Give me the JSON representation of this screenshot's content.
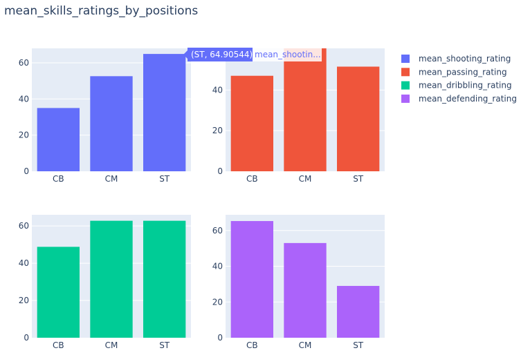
{
  "title": "mean_skills_ratings_by_positions",
  "colors": {
    "plot_bg": "#e5ecf6",
    "grid": "#ffffff",
    "text": "#2a3f5f"
  },
  "legend": {
    "placement": "top-right",
    "items": [
      {
        "name": "mean_shooting_rating",
        "color": "#636efa"
      },
      {
        "name": "mean_passing_rating",
        "color": "#ef553b"
      },
      {
        "name": "mean_dribbling_rating",
        "color": "#00cc96"
      },
      {
        "name": "mean_defending_rating",
        "color": "#ab63fa"
      }
    ]
  },
  "hover": {
    "point_text": "(ST, 64.90544)",
    "series_text": "mean_shootin...",
    "color": "#636efa"
  },
  "chart_data": [
    {
      "type": "bar",
      "title": "",
      "categories": [
        "CB",
        "CM",
        "ST"
      ],
      "series": [
        {
          "name": "mean_shooting_rating",
          "values": [
            35.0,
            52.6,
            64.90544
          ]
        }
      ],
      "ylim": [
        0,
        68
      ],
      "yticks": [
        0,
        20,
        40,
        60
      ],
      "grid": true
    },
    {
      "type": "bar",
      "title": "",
      "categories": [
        "CB",
        "CM",
        "ST"
      ],
      "series": [
        {
          "name": "mean_passing_rating",
          "values": [
            47.0,
            60.5,
            51.5
          ]
        }
      ],
      "ylim": [
        0,
        60.5
      ],
      "yticks": [
        0,
        20,
        40
      ],
      "grid": true
    },
    {
      "type": "bar",
      "title": "",
      "categories": [
        "CB",
        "CM",
        "ST"
      ],
      "series": [
        {
          "name": "mean_dribbling_rating",
          "values": [
            48.8,
            62.8,
            62.8
          ]
        }
      ],
      "ylim": [
        0,
        66
      ],
      "yticks": [
        0,
        20,
        40,
        60
      ],
      "grid": true
    },
    {
      "type": "bar",
      "title": "",
      "categories": [
        "CB",
        "CM",
        "ST"
      ],
      "series": [
        {
          "name": "mean_defending_rating",
          "values": [
            65.3,
            53.0,
            29.0
          ]
        }
      ],
      "ylim": [
        0,
        68.8
      ],
      "yticks": [
        0,
        20,
        40,
        60
      ],
      "grid": true
    }
  ]
}
